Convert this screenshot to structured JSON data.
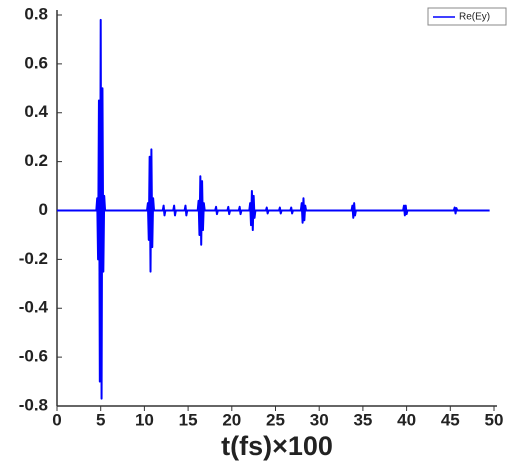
{
  "chart_data": {
    "type": "line",
    "xlabel": "t(fs)×100",
    "xlim": [
      0,
      50
    ],
    "ylim": [
      -0.8,
      0.8
    ],
    "xticks": [
      0,
      5,
      10,
      15,
      20,
      25,
      30,
      35,
      40,
      45,
      50
    ],
    "yticks": [
      0.8,
      0.6,
      0.4,
      0.2,
      0,
      -0.2,
      -0.4,
      -0.6,
      -0.8
    ],
    "legend": "top-right",
    "x": [
      0,
      4.5,
      4.6,
      4.7,
      4.8,
      4.9,
      5.0,
      5.1,
      5.2,
      5.3,
      5.4,
      5.5,
      10.3,
      10.4,
      10.5,
      10.6,
      10.7,
      10.8,
      10.9,
      11.0,
      11.1,
      12.1,
      12.2,
      12.3,
      12.4,
      13.3,
      13.4,
      13.5,
      13.6,
      14.6,
      14.7,
      14.8,
      14.9,
      16.1,
      16.2,
      16.3,
      16.4,
      16.5,
      16.6,
      16.7,
      16.8,
      16.9,
      18.1,
      18.2,
      18.3,
      18.4,
      19.5,
      19.6,
      19.7,
      19.8,
      20.8,
      20.9,
      21.0,
      21.1,
      22.0,
      22.1,
      22.2,
      22.3,
      22.4,
      22.5,
      22.6,
      22.7,
      23.9,
      24.0,
      24.1,
      24.2,
      25.4,
      25.5,
      25.6,
      25.7,
      26.7,
      26.8,
      26.9,
      27.0,
      27.9,
      28.0,
      28.1,
      28.2,
      28.3,
      28.4,
      28.5,
      33.7,
      33.8,
      33.9,
      34.0,
      34.1,
      34.2,
      39.6,
      39.7,
      39.8,
      39.9,
      40.0,
      40.1,
      45.4,
      45.5,
      45.6,
      45.7,
      45.8,
      49.5
    ],
    "series": [
      {
        "name": "Re(Ey)",
        "color": "#0000ff",
        "values": [
          0,
          0,
          0.05,
          -0.2,
          0.45,
          -0.7,
          0.78,
          -0.77,
          0.5,
          -0.25,
          0.06,
          0,
          0,
          0.03,
          -0.12,
          0.22,
          -0.25,
          0.25,
          -0.15,
          0.05,
          0,
          0,
          0.02,
          -0.02,
          0,
          0,
          0.02,
          -0.02,
          0,
          0,
          0.02,
          -0.02,
          0,
          0,
          0.04,
          -0.1,
          0.14,
          -0.14,
          0.12,
          -0.08,
          0.03,
          0,
          0,
          0.015,
          -0.015,
          0,
          0,
          0.015,
          -0.015,
          0,
          0,
          0.015,
          -0.015,
          0,
          0,
          0.03,
          -0.06,
          0.08,
          -0.08,
          0.06,
          -0.03,
          0,
          0,
          0.012,
          -0.012,
          0,
          0,
          0.012,
          -0.012,
          0,
          0,
          0.012,
          -0.012,
          0,
          0,
          0.03,
          -0.05,
          0.05,
          -0.04,
          0.02,
          0,
          0,
          0.02,
          -0.03,
          0.03,
          -0.02,
          0,
          0,
          0.02,
          -0.02,
          0.02,
          -0.015,
          0,
          0,
          0.012,
          -0.012,
          0.01,
          0,
          0
        ]
      }
    ]
  }
}
